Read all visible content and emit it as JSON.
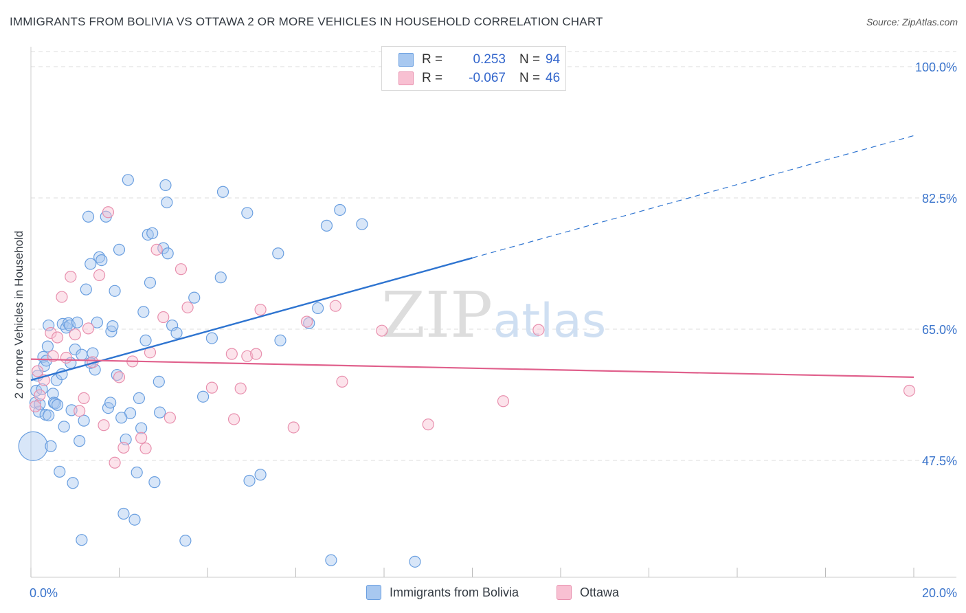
{
  "title": "IMMIGRANTS FROM BOLIVIA VS OTTAWA 2 OR MORE VEHICLES IN HOUSEHOLD CORRELATION CHART",
  "source": "Source: ZipAtlas.com",
  "watermark": {
    "zip": "ZIP",
    "atlas": "atlas"
  },
  "legend": {
    "rows": [
      {
        "r_label": "R =",
        "r_value": "0.253",
        "n_label": "N =",
        "n_value": "94",
        "color": "#a8c8f0",
        "border": "#6a9fe0"
      },
      {
        "r_label": "R =",
        "r_value": "-0.067",
        "n_label": "N =",
        "n_value": "46",
        "color": "#f8c0d2",
        "border": "#e890ae"
      }
    ]
  },
  "bottom_legend": [
    {
      "label": "Immigrants from Bolivia",
      "color": "#a8c8f0",
      "border": "#6a9fe0"
    },
    {
      "label": "Ottawa",
      "color": "#f8c0d2",
      "border": "#e890ae"
    }
  ],
  "chart_data": {
    "type": "scatter",
    "title": "IMMIGRANTS FROM BOLIVIA VS OTTAWA 2 OR MORE VEHICLES IN HOUSEHOLD CORRELATION CHART",
    "xlabel": "",
    "ylabel": "2 or more Vehicles in Household",
    "xlim": [
      0,
      20
    ],
    "ylim": [
      31,
      102
    ],
    "x_tick_labels": [
      {
        "value": 0,
        "label": "0.0%"
      },
      {
        "value": 20,
        "label": "20.0%"
      }
    ],
    "y_tick_labels": [
      {
        "value": 47.5,
        "label": "47.5%"
      },
      {
        "value": 65.0,
        "label": "65.0%"
      },
      {
        "value": 82.5,
        "label": "82.5%"
      },
      {
        "value": 100.0,
        "label": "100.0%"
      }
    ],
    "grid": true,
    "legend_position": "top-center",
    "series": [
      {
        "name": "Immigrants from Bolivia",
        "color": "#a8c8f0",
        "stroke": "#6a9fe0",
        "trend": {
          "x0": 0,
          "y0": 58.2,
          "x1": 10,
          "y1": 74.5,
          "dash_to_x": 20,
          "dash_to_y": 90.8,
          "color": "#2e74d0"
        },
        "points": [
          [
            0.05,
            49.4
          ],
          [
            0.1,
            55.2
          ],
          [
            0.12,
            56.8
          ],
          [
            0.15,
            58.8
          ],
          [
            0.18,
            54.0
          ],
          [
            0.2,
            55.0
          ],
          [
            0.25,
            57.0
          ],
          [
            0.28,
            61.3
          ],
          [
            0.3,
            60.1
          ],
          [
            0.33,
            53.6
          ],
          [
            0.35,
            60.8
          ],
          [
            0.38,
            62.7
          ],
          [
            0.4,
            53.5
          ],
          [
            0.45,
            49.4
          ],
          [
            0.5,
            56.4
          ],
          [
            0.52,
            55.2
          ],
          [
            0.55,
            55.1
          ],
          [
            0.58,
            58.2
          ],
          [
            0.6,
            54.9
          ],
          [
            0.65,
            46.0
          ],
          [
            0.7,
            59.0
          ],
          [
            0.72,
            65.7
          ],
          [
            0.75,
            52.0
          ],
          [
            0.8,
            65.2
          ],
          [
            0.85,
            65.8
          ],
          [
            0.88,
            65.5
          ],
          [
            0.9,
            60.5
          ],
          [
            0.92,
            54.2
          ],
          [
            0.95,
            44.5
          ],
          [
            1.0,
            62.3
          ],
          [
            1.05,
            65.9
          ],
          [
            1.1,
            50.1
          ],
          [
            1.15,
            36.9
          ],
          [
            1.2,
            52.8
          ],
          [
            1.25,
            70.3
          ],
          [
            1.3,
            80.0
          ],
          [
            1.35,
            73.7
          ],
          [
            1.4,
            61.8
          ],
          [
            1.45,
            59.6
          ],
          [
            1.5,
            65.9
          ],
          [
            1.55,
            74.6
          ],
          [
            1.6,
            74.2
          ],
          [
            1.7,
            80.0
          ],
          [
            1.75,
            54.5
          ],
          [
            1.8,
            55.2
          ],
          [
            1.82,
            64.7
          ],
          [
            1.85,
            65.4
          ],
          [
            1.9,
            70.1
          ],
          [
            1.95,
            58.9
          ],
          [
            2.0,
            75.6
          ],
          [
            2.1,
            40.4
          ],
          [
            2.15,
            50.3
          ],
          [
            2.2,
            84.9
          ],
          [
            2.25,
            53.8
          ],
          [
            2.35,
            39.6
          ],
          [
            2.4,
            45.9
          ],
          [
            2.45,
            55.8
          ],
          [
            2.5,
            51.8
          ],
          [
            2.55,
            67.3
          ],
          [
            2.6,
            63.5
          ],
          [
            2.65,
            77.6
          ],
          [
            2.7,
            71.2
          ],
          [
            2.75,
            77.8
          ],
          [
            2.8,
            44.6
          ],
          [
            2.9,
            58.0
          ],
          [
            2.92,
            53.9
          ],
          [
            3.0,
            75.8
          ],
          [
            3.05,
            84.2
          ],
          [
            3.08,
            81.9
          ],
          [
            3.1,
            75.1
          ],
          [
            3.2,
            65.5
          ],
          [
            3.3,
            64.5
          ],
          [
            3.5,
            36.8
          ],
          [
            3.7,
            69.2
          ],
          [
            4.1,
            63.8
          ],
          [
            4.3,
            71.9
          ],
          [
            4.35,
            83.3
          ],
          [
            4.9,
            80.5
          ],
          [
            4.95,
            44.8
          ],
          [
            5.6,
            75.1
          ],
          [
            5.65,
            63.5
          ],
          [
            6.3,
            65.8
          ],
          [
            6.5,
            67.8
          ],
          [
            6.7,
            78.8
          ],
          [
            6.8,
            34.2
          ],
          [
            7.0,
            80.9
          ],
          [
            7.5,
            79.0
          ],
          [
            8.7,
            34.0
          ],
          [
            5.2,
            45.6
          ],
          [
            1.35,
            60.5
          ],
          [
            0.4,
            65.5
          ],
          [
            3.9,
            56.0
          ],
          [
            2.05,
            53.2
          ],
          [
            1.15,
            61.6
          ]
        ]
      },
      {
        "name": "Ottawa",
        "color": "#f8c0d2",
        "stroke": "#e890ae",
        "trend": {
          "x0": 0,
          "y0": 61.0,
          "x1": 20,
          "y1": 58.6,
          "color": "#e0608c"
        },
        "points": [
          [
            0.1,
            54.7
          ],
          [
            0.15,
            59.4
          ],
          [
            0.3,
            58.2
          ],
          [
            0.45,
            64.5
          ],
          [
            0.5,
            61.4
          ],
          [
            0.6,
            63.9
          ],
          [
            0.7,
            69.3
          ],
          [
            0.8,
            61.2
          ],
          [
            0.9,
            72.0
          ],
          [
            1.0,
            64.3
          ],
          [
            1.1,
            54.1
          ],
          [
            1.2,
            55.8
          ],
          [
            1.4,
            60.6
          ],
          [
            1.55,
            72.2
          ],
          [
            1.65,
            52.2
          ],
          [
            1.75,
            80.6
          ],
          [
            1.9,
            47.2
          ],
          [
            2.0,
            58.6
          ],
          [
            2.1,
            49.2
          ],
          [
            2.3,
            60.7
          ],
          [
            2.5,
            50.5
          ],
          [
            2.6,
            49.1
          ],
          [
            2.7,
            61.9
          ],
          [
            2.85,
            75.6
          ],
          [
            3.0,
            66.6
          ],
          [
            3.15,
            53.2
          ],
          [
            3.4,
            73.0
          ],
          [
            3.55,
            67.9
          ],
          [
            4.1,
            57.2
          ],
          [
            4.55,
            61.7
          ],
          [
            4.6,
            53.0
          ],
          [
            4.75,
            57.1
          ],
          [
            4.9,
            61.4
          ],
          [
            5.1,
            61.7
          ],
          [
            5.2,
            67.6
          ],
          [
            5.95,
            51.9
          ],
          [
            6.25,
            66.0
          ],
          [
            6.9,
            68.1
          ],
          [
            7.05,
            58.0
          ],
          [
            7.95,
            64.8
          ],
          [
            9.0,
            52.3
          ],
          [
            10.7,
            55.4
          ],
          [
            11.5,
            64.9
          ],
          [
            19.9,
            56.8
          ],
          [
            0.2,
            56.2
          ],
          [
            1.3,
            65.1
          ]
        ]
      }
    ]
  }
}
